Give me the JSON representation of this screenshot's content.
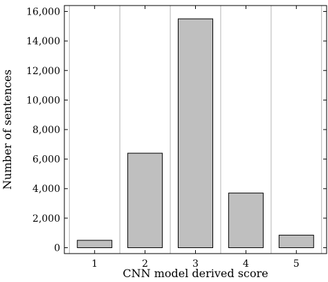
{
  "chart_data": {
    "type": "bar",
    "categories": [
      "1",
      "2",
      "3",
      "4",
      "5"
    ],
    "values": [
      500,
      6400,
      15500,
      3700,
      850
    ],
    "xlabel": "CNN model derived score",
    "ylabel": "Number of sentences",
    "ylim": [
      -400,
      16400
    ],
    "yticks": [
      0,
      2000,
      4000,
      6000,
      8000,
      10000,
      12000,
      14000,
      16000
    ],
    "ytick_labels": [
      "0",
      "2,000",
      "4,000",
      "6,000",
      "8,000",
      "10,000",
      "12,000",
      "14,000",
      "16,000"
    ],
    "bar_color": "#bfbfbf",
    "grid": "vertical gridlines between categories"
  }
}
